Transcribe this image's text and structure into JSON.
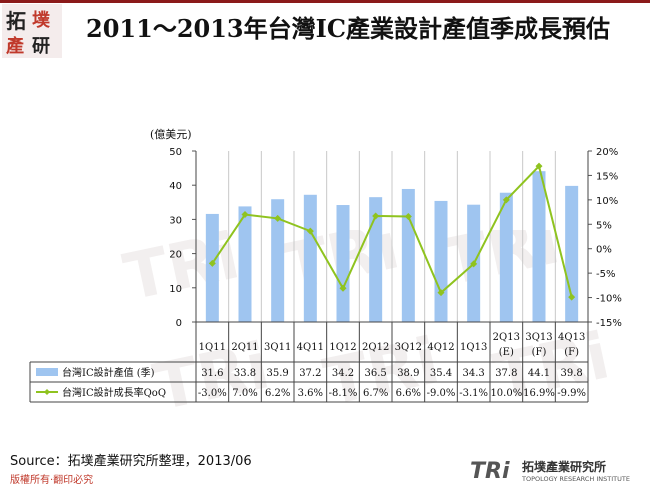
{
  "title": "2011～2013年台灣IC產業設計產值季成長預估",
  "logo_text": "拓墣產研",
  "chart_data": {
    "type": "bar",
    "title": "2011～2013年台灣IC產業設計產值季成長預估",
    "categories": [
      "1Q11",
      "2Q11",
      "3Q11",
      "4Q11",
      "1Q12",
      "2Q12",
      "3Q12",
      "4Q12",
      "1Q13",
      "2Q13\n(E)",
      "3Q13\n(F)",
      "4Q13\n(F)"
    ],
    "y_label": "(億美元)",
    "y_range": [
      0,
      50
    ],
    "y_ticks": [
      "0",
      "10",
      "20",
      "30",
      "40",
      "50"
    ],
    "y2_range": [
      -15,
      20
    ],
    "y2_ticks": [
      "-15%",
      "-10%",
      "-5%",
      "0%",
      "5%",
      "10%",
      "15%",
      "20%"
    ],
    "series": [
      {
        "name": "台灣IC設計產值 (季)",
        "type": "bar",
        "color": "#9fc5f0",
        "values": [
          31.6,
          33.8,
          35.9,
          37.2,
          34.2,
          36.5,
          38.9,
          35.4,
          34.3,
          37.8,
          44.1,
          39.8
        ],
        "labels": [
          "31.6",
          "33.8",
          "35.9",
          "37.2",
          "34.2",
          "36.5",
          "38.9",
          "35.4",
          "34.3",
          "37.8",
          "44.1",
          "39.8"
        ]
      },
      {
        "name": "台灣IC設計成長率QoQ",
        "type": "line",
        "axis": "right",
        "color": "#8fc31f",
        "values": [
          -3.0,
          7.0,
          6.2,
          3.6,
          -8.1,
          6.7,
          6.6,
          -9.0,
          -3.1,
          10.0,
          16.9,
          -9.9
        ],
        "labels": [
          "-3.0%",
          "7.0%",
          "6.2%",
          "3.6%",
          "-8.1%",
          "6.7%",
          "6.6%",
          "-9.0%",
          "-3.1%",
          "10.0%",
          "16.9%",
          "-9.9%"
        ]
      }
    ],
    "grid": "vertical"
  },
  "source": "Source：拓墣產業研究所整理，2013/06",
  "copyright": "版權所有‧翻印必究",
  "brand": {
    "main": "拓墣產業研究所",
    "sub": "TOPOLOGY RESEARCH INSTITUTE",
    "mark": "TRi"
  }
}
